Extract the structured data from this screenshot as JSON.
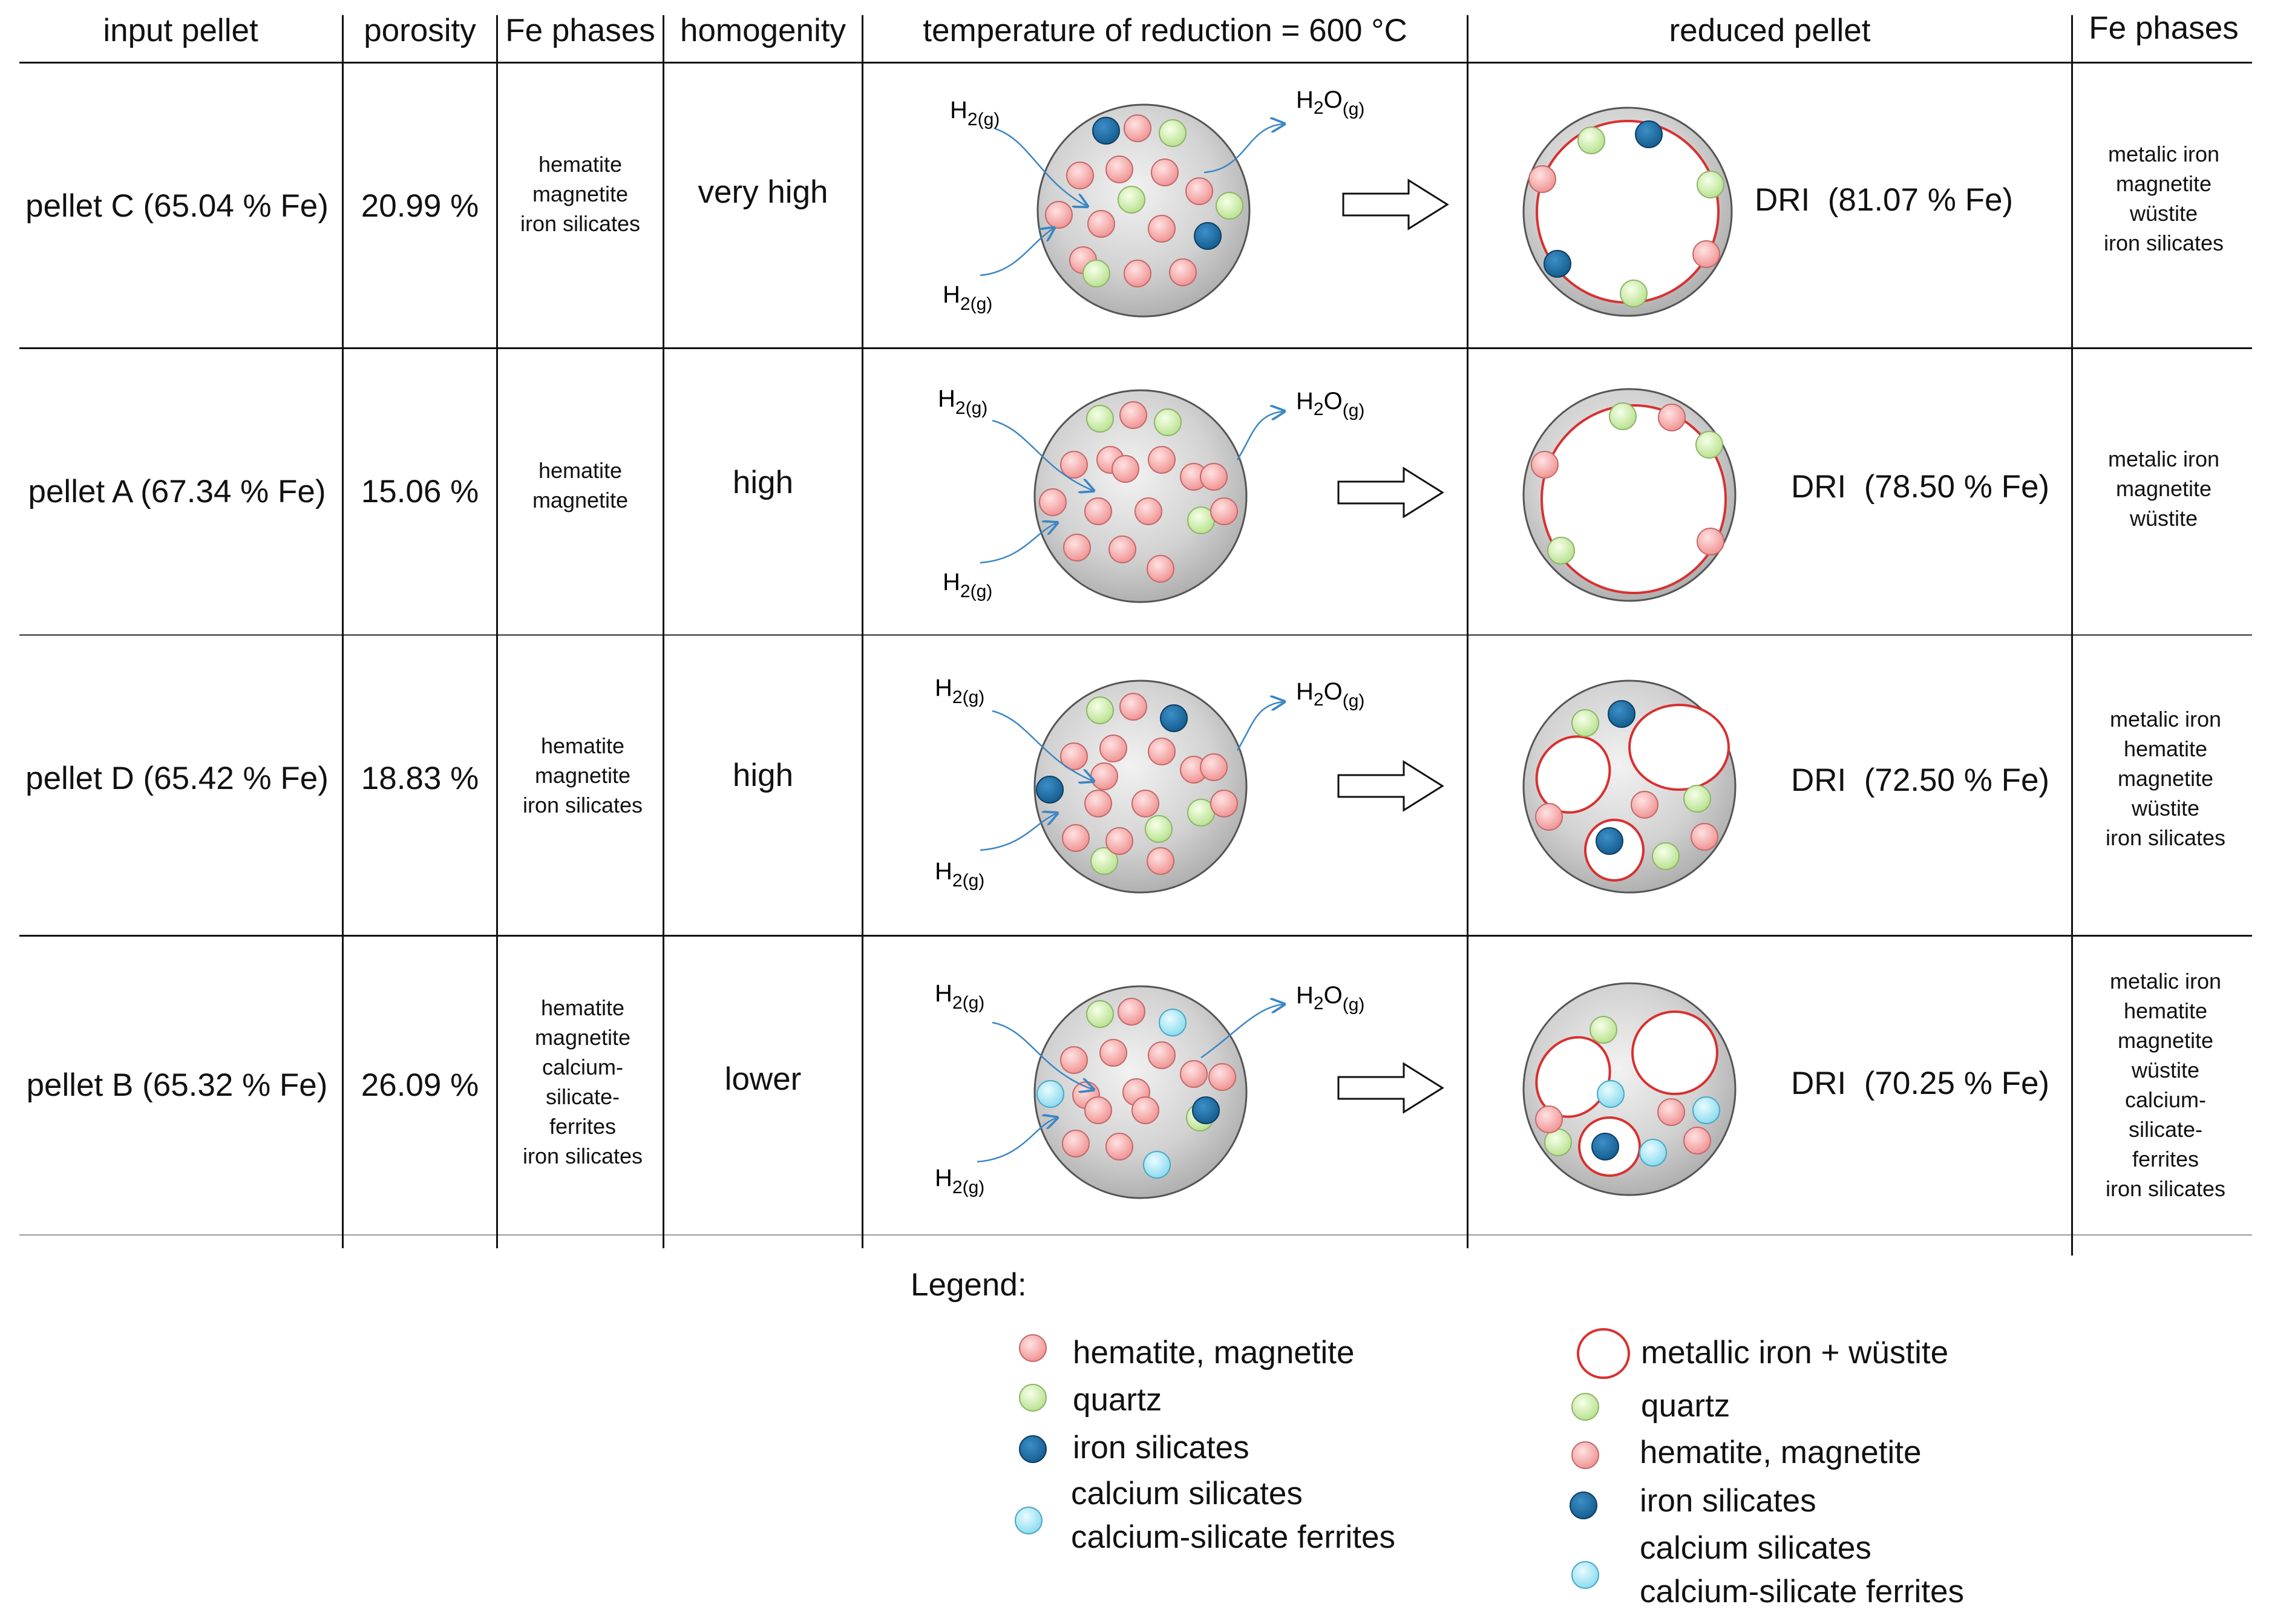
{
  "header": {
    "input_pellet": "input pellet",
    "porosity": "porosity",
    "fe_phases": "Fe phases",
    "homogenity": "homogenity",
    "temperature": "temperature of reduction  = 600 °C",
    "reduced_pellet": "reduced pellet",
    "fe_phases_out": "Fe phases"
  },
  "gas": {
    "h2": "H",
    "h2_sub": "2(g)",
    "h2o_a": "H",
    "h2o_sub1": "2",
    "h2o_b": "O",
    "h2o_sub2": "(g)"
  },
  "rows": [
    {
      "pellet": "pellet C (65.04 % Fe)",
      "porosity": "20.99 %",
      "phases": [
        "hematite",
        "magnetite",
        "iron silicates"
      ],
      "homogenity": "very high",
      "dri": "DRI  (81.07 % Fe)",
      "out_phases": [
        "metalic iron",
        "magnetite",
        "wüstite",
        "iron silicates"
      ]
    },
    {
      "pellet": "pellet A (67.34 % Fe)",
      "porosity": "15.06 %",
      "phases": [
        "hematite",
        "magnetite"
      ],
      "homogenity": "high",
      "dri": "DRI  (78.50 % Fe)",
      "out_phases": [
        "metalic iron",
        "magnetite",
        "wüstite"
      ]
    },
    {
      "pellet": "pellet D (65.42 % Fe)",
      "porosity": "18.83 %",
      "phases": [
        "hematite",
        "magnetite",
        "iron silicates"
      ],
      "homogenity": "high",
      "dri": "DRI  (72.50 % Fe)",
      "out_phases": [
        "metalic iron",
        "hematite",
        "magnetite",
        "wüstite",
        "iron silicates"
      ]
    },
    {
      "pellet": "pellet B (65.32 % Fe)",
      "porosity": "26.09 %",
      "phases": [
        "hematite",
        "magnetite",
        "calcium-",
        "silicate-",
        "ferrites",
        "iron silicates"
      ],
      "homogenity": "lower",
      "dri": "DRI  (70.25 % Fe)",
      "out_phases": [
        "metalic iron",
        "hematite",
        "magnetite",
        "wüstite",
        "calcium-",
        "silicate-",
        "ferrites",
        "iron silicates"
      ]
    }
  ],
  "legend": {
    "title": "Legend:",
    "left": [
      {
        "label": "hematite, magnetite",
        "color": "#f6a9a9"
      },
      {
        "label": "quartz",
        "color": "#d2efaf"
      },
      {
        "label": "iron silicates",
        "color": "#1f6fa6"
      },
      {
        "label": "calcium silicates",
        "label2": "calcium-silicate ferrites",
        "color": "#a9e6f5"
      }
    ],
    "right": [
      {
        "label": "metallic iron + wüstite",
        "color": "#d93030"
      },
      {
        "label": "quartz",
        "color": "#d2efaf"
      },
      {
        "label": "hematite, magnetite",
        "color": "#f6a9a9"
      },
      {
        "label": "iron silicates",
        "color": "#1f6fa6"
      },
      {
        "label": "calcium silicates",
        "label2": "calcium-silicate ferrites",
        "color": "#a9e6f5"
      }
    ]
  }
}
